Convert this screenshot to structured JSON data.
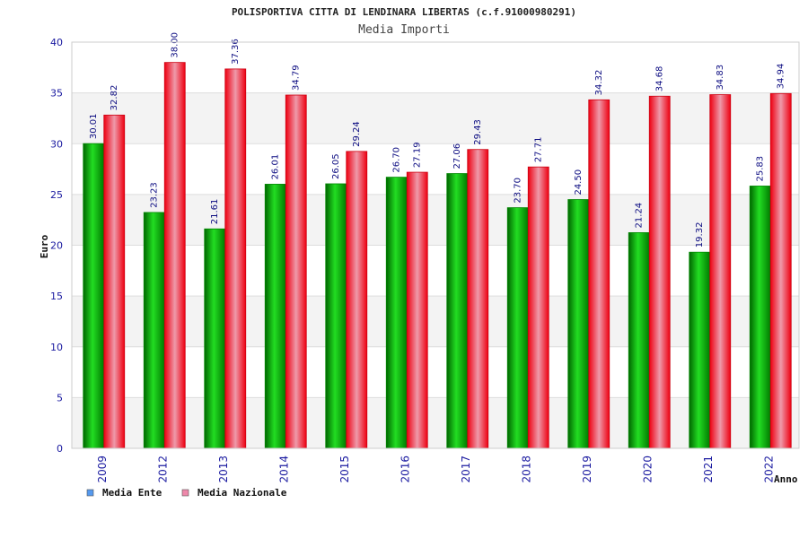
{
  "chart_data": {
    "type": "bar",
    "title": "POLISPORTIVA CITTA DI LENDINARA LIBERTAS (c.f.91000980291)",
    "subtitle": "Media Importi",
    "xlabel": "Anno",
    "ylabel": "Euro",
    "ylim": [
      0,
      40
    ],
    "yticks": [
      0,
      5,
      10,
      15,
      20,
      25,
      30,
      35,
      40
    ],
    "categories": [
      "2009",
      "2012",
      "2013",
      "2014",
      "2015",
      "2016",
      "2017",
      "2018",
      "2019",
      "2020",
      "2021",
      "2022"
    ],
    "series": [
      {
        "name": "Media Ente",
        "values": [
          30.01,
          23.23,
          21.61,
          26.01,
          26.05,
          26.7,
          27.06,
          23.7,
          24.5,
          21.24,
          19.32,
          25.83
        ],
        "labels": [
          "30.01",
          "23.23",
          "21.61",
          "26.01",
          "26.05",
          "26.70",
          "27.06",
          "23.70",
          "24.50",
          "21.24",
          "19.32",
          "25.83"
        ],
        "color": "#00b400",
        "legend_color": "#5599ee"
      },
      {
        "name": "Media Nazionale",
        "values": [
          32.82,
          38.0,
          37.36,
          34.79,
          29.24,
          27.19,
          29.43,
          27.71,
          34.32,
          34.68,
          34.83,
          34.94
        ],
        "labels": [
          "32.82",
          "38.00",
          "37.36",
          "34.79",
          "29.24",
          "27.19",
          "29.43",
          "27.71",
          "34.32",
          "34.68",
          "34.83",
          "34.94"
        ],
        "color": "#ee1122",
        "legend_color": "#ee88aa"
      }
    ],
    "grid": true,
    "legend_position": "bottom-left"
  }
}
